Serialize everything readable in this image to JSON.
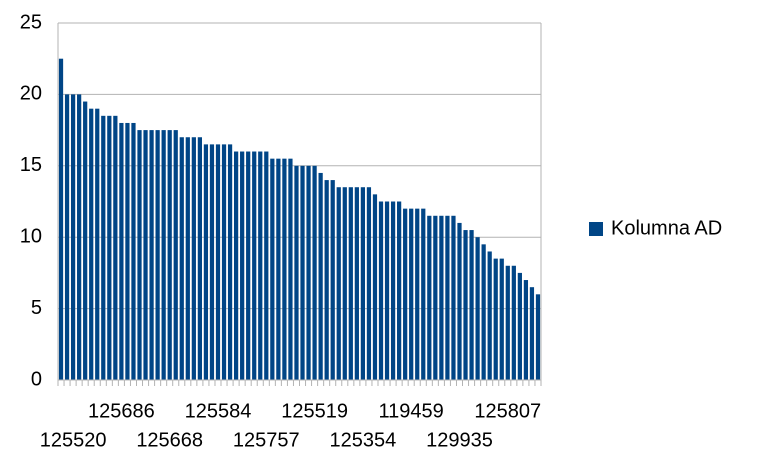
{
  "chart_data": {
    "type": "bar",
    "categories": [
      null,
      null,
      "125520",
      null,
      null,
      null,
      null,
      null,
      null,
      null,
      "125686",
      null,
      null,
      null,
      null,
      null,
      null,
      null,
      "125668",
      null,
      null,
      null,
      null,
      null,
      null,
      null,
      "125584",
      null,
      null,
      null,
      null,
      null,
      null,
      null,
      "125757",
      null,
      null,
      null,
      null,
      null,
      null,
      null,
      "125519",
      null,
      null,
      null,
      null,
      null,
      null,
      null,
      "125354",
      null,
      null,
      null,
      null,
      null,
      null,
      null,
      "119459",
      null,
      null,
      null,
      null,
      null,
      null,
      null,
      "129935",
      null,
      null,
      null,
      null,
      null,
      null,
      null,
      "125807",
      null,
      null,
      null,
      null,
      null
    ],
    "series": [
      {
        "name": "Kolumna AD",
        "color": "#004586",
        "values": [
          22.5,
          20,
          20,
          20,
          19.5,
          19,
          19,
          18.5,
          18.5,
          18.5,
          18,
          18,
          18,
          17.5,
          17.5,
          17.5,
          17.5,
          17.5,
          17.5,
          17.5,
          17,
          17,
          17,
          17,
          16.5,
          16.5,
          16.5,
          16.5,
          16.5,
          16,
          16,
          16,
          16,
          16,
          16,
          15.5,
          15.5,
          15.5,
          15.5,
          15,
          15,
          15,
          15,
          14.5,
          14,
          14,
          13.5,
          13.5,
          13.5,
          13.5,
          13.5,
          13.5,
          13,
          12.5,
          12.5,
          12.5,
          12.5,
          12,
          12,
          12,
          12,
          11.5,
          11.5,
          11.5,
          11.5,
          11.5,
          11,
          10.5,
          10.5,
          10,
          9.5,
          9,
          8.5,
          8.5,
          8,
          8,
          7.5,
          7,
          6.5,
          6
        ]
      }
    ],
    "ylim": [
      0,
      25
    ],
    "yticks": [
      0,
      5,
      10,
      15,
      20,
      25
    ],
    "grid": true,
    "legend": "right"
  }
}
